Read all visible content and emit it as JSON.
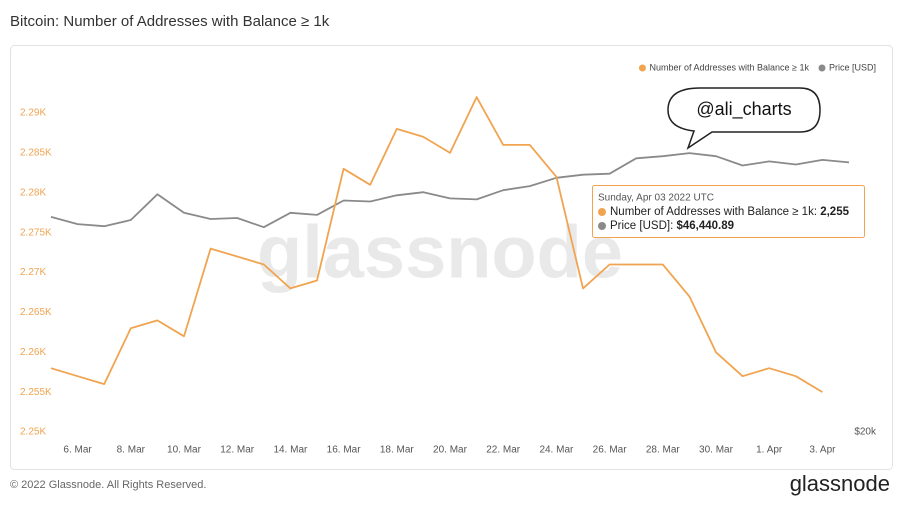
{
  "chart_data": {
    "type": "line",
    "title": "Bitcoin: Number of Addresses with Balance ≥ 1k",
    "categories": [
      null,
      "6. Mar",
      null,
      "8. Mar",
      null,
      "10. Mar",
      null,
      "12. Mar",
      null,
      "14. Mar",
      null,
      "16. Mar",
      null,
      "18. Mar",
      null,
      "20. Mar",
      null,
      "22. Mar",
      null,
      "24. Mar",
      null,
      "26. Mar",
      null,
      "28. Mar",
      null,
      "30. Mar",
      null,
      "1. Apr",
      null,
      "3. Apr",
      null
    ],
    "series": [
      {
        "name": "Number of Addresses with Balance ≥ 1k",
        "color": "#f0a450",
        "values": [
          2258,
          2257,
          2256,
          2263,
          2264,
          2262,
          2273,
          2272,
          2271,
          2268,
          2269,
          2283,
          2281,
          2288,
          2287,
          2285,
          2292,
          2286,
          2286,
          2282,
          2268,
          2271,
          2271,
          2271,
          2267,
          2260,
          2257,
          2258,
          2257,
          2255,
          null
        ]
      },
      {
        "name": "Price [USD]",
        "color": "#8a8a8a",
        "axis": "y2",
        "values": [
          40900,
          40200,
          40000,
          40600,
          43100,
          41300,
          40700,
          40800,
          39900,
          41300,
          41100,
          42500,
          42400,
          43000,
          43300,
          42700,
          42600,
          43500,
          43900,
          44700,
          45000,
          45100,
          46600,
          46800,
          47100,
          46800,
          45900,
          46300,
          46000,
          46440.89,
          46200
        ]
      }
    ],
    "ylim": [
      2250,
      2290
    ],
    "yticks": [
      {
        "value": 2250,
        "label": "2.25K"
      },
      {
        "value": 2255,
        "label": "2.255K"
      },
      {
        "value": 2260,
        "label": "2.26K"
      },
      {
        "value": 2265,
        "label": "2.265K"
      },
      {
        "value": 2270,
        "label": "2.27K"
      },
      {
        "value": 2275,
        "label": "2.275K"
      },
      {
        "value": 2280,
        "label": "2.28K"
      },
      {
        "value": 2285,
        "label": "2.285K"
      },
      {
        "value": 2290,
        "label": "2.29K"
      }
    ],
    "y2lim": [
      20000,
      51000
    ],
    "y2ticks": [
      {
        "value": 20000,
        "label": "$20k"
      }
    ],
    "grid": false,
    "legend": "top-right",
    "tooltip": {
      "title": "Sunday, Apr 03 2022 UTC",
      "labels": [
        "2,255",
        "$46,440.89"
      ]
    },
    "annotation": "@ali_charts",
    "watermark": "glassnode",
    "footer": "© 2022 Glassnode. All Rights Reserved.",
    "logo": "glassnode"
  }
}
